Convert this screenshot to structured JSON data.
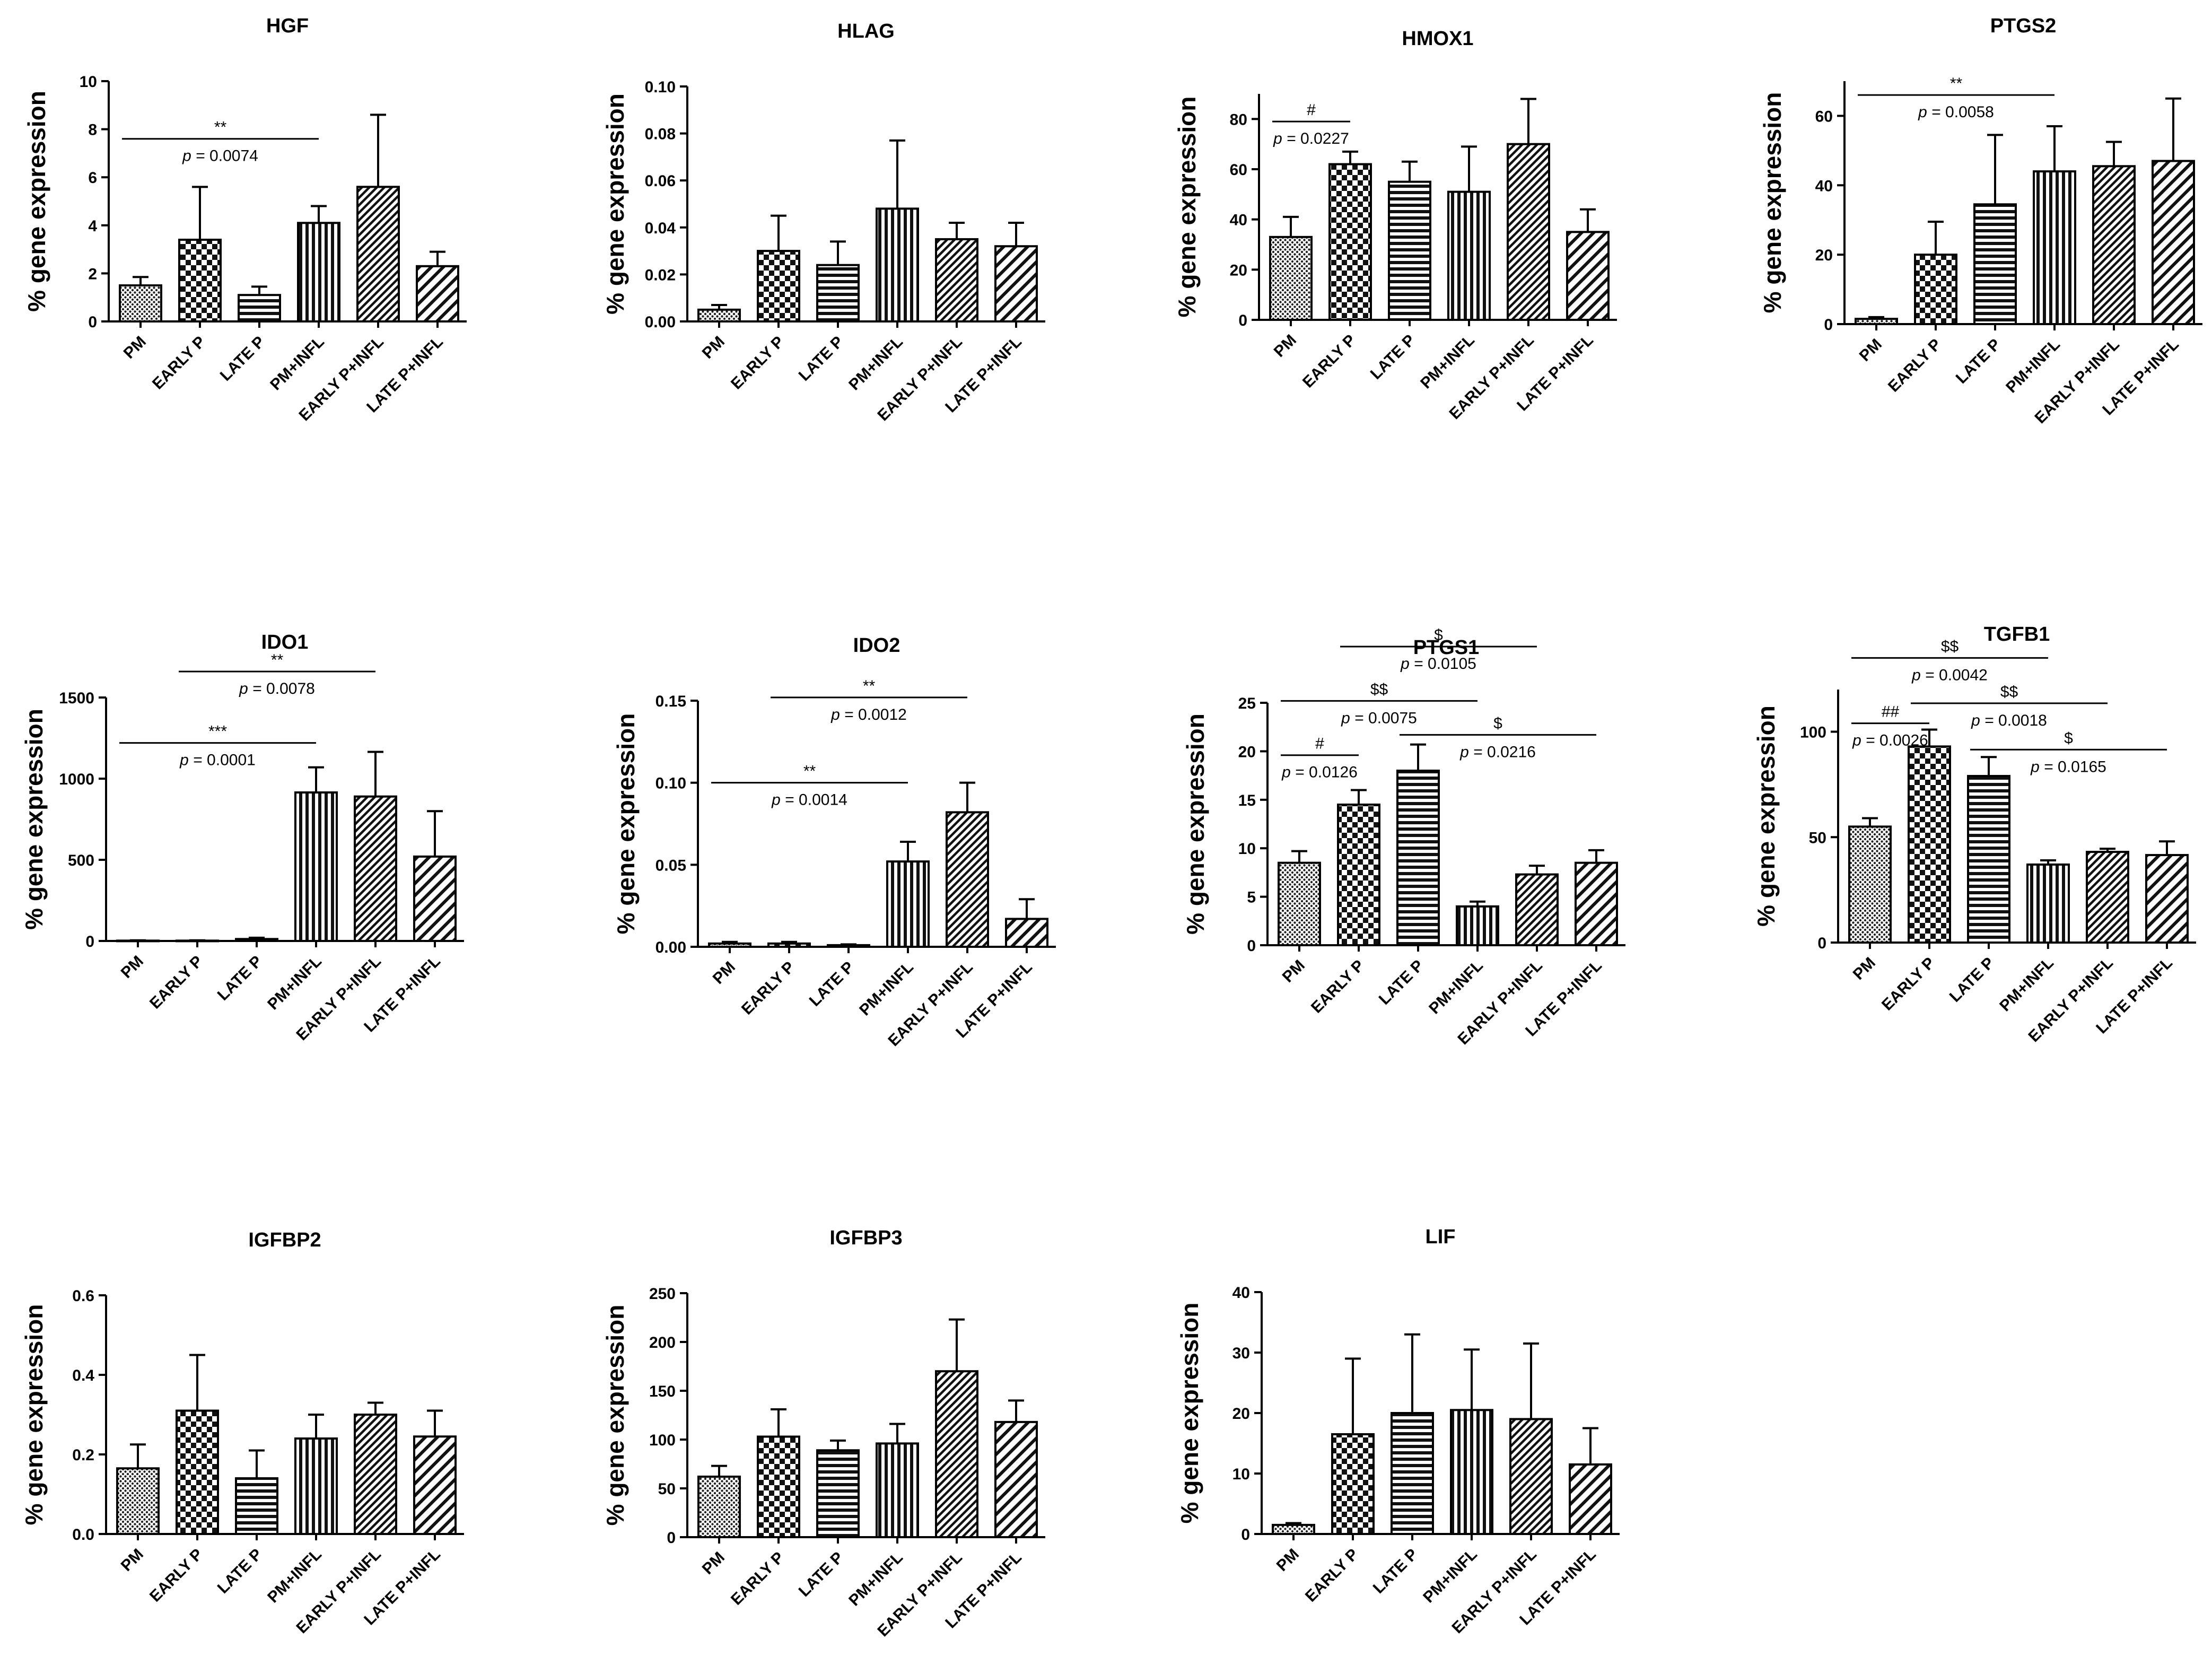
{
  "figure": {
    "title": ""
  },
  "patterns": {
    "PM": "dots",
    "EARLY P": "checker",
    "LATE P": "hlines",
    "PM+INFL": "vlines",
    "EARLY P+INFL": "diag-fine",
    "LATE P+INFL": "diag-wide"
  },
  "chart_data": [
    {
      "type": "bar",
      "title": "HGF",
      "ylabel": "% gene expression",
      "categories": [
        "PM",
        "EARLY P",
        "LATE P",
        "PM+INFL",
        "EARLY P+INFL",
        "LATE P+INFL"
      ],
      "values": [
        1.5,
        3.4,
        1.1,
        4.1,
        5.6,
        2.3
      ],
      "errors": [
        0.35,
        2.2,
        0.35,
        0.7,
        3.0,
        0.6
      ],
      "ylim": [
        0,
        10
      ],
      "yticks": [
        "0",
        "2",
        "4",
        "6",
        "8",
        "10"
      ],
      "annotations": [
        {
          "from": 0,
          "to": 3,
          "symbol": "**",
          "p": "= 0.0074",
          "y": 7.6
        }
      ]
    },
    {
      "type": "bar",
      "title": "HLAG",
      "ylabel": "% gene expression",
      "categories": [
        "PM",
        "EARLY P",
        "LATE P",
        "PM+INFL",
        "EARLY P+INFL",
        "LATE P+INFL"
      ],
      "values": [
        0.005,
        0.03,
        0.024,
        0.048,
        0.035,
        0.032
      ],
      "errors": [
        0.002,
        0.015,
        0.01,
        0.029,
        0.007,
        0.01
      ],
      "ylim": [
        0,
        0.1
      ],
      "yticks": [
        "0.00",
        "0.02",
        "0.04",
        "0.06",
        "0.08",
        "0.10"
      ],
      "annotations": []
    },
    {
      "type": "bar",
      "title": "HMOX1",
      "ylabel": "% gene expression",
      "categories": [
        "PM",
        "EARLY P",
        "LATE P",
        "PM+INFL",
        "EARLY P+INFL",
        "LATE P+INFL"
      ],
      "values": [
        33,
        62,
        55,
        51,
        70,
        35
      ],
      "errors": [
        8,
        5,
        8,
        18,
        18,
        9
      ],
      "ylim": [
        0,
        90
      ],
      "yticks": [
        "0",
        "20",
        "40",
        "60",
        "80"
      ],
      "annotations": [
        {
          "from": 0,
          "to": 1,
          "symbol": "#",
          "p": "= 0.0227",
          "y": 79
        }
      ]
    },
    {
      "type": "bar",
      "title": "PTGS2",
      "ylabel": "% gene expression",
      "categories": [
        "PM",
        "EARLY P",
        "LATE P",
        "PM+INFL",
        "EARLY P+INFL",
        "LATE P+INFL"
      ],
      "values": [
        1.5,
        20,
        34.5,
        44,
        45.5,
        47
      ],
      "errors": [
        0.5,
        9.5,
        20,
        13,
        7,
        18
      ],
      "ylim": [
        0,
        70
      ],
      "yticks": [
        "0",
        "20",
        "40",
        "60"
      ],
      "annotations": [
        {
          "from": 0,
          "to": 3,
          "symbol": "**",
          "p": "= 0.0058",
          "y": 66
        }
      ]
    },
    {
      "type": "bar",
      "title": "IDO1",
      "ylabel": "% gene expression",
      "categories": [
        "PM",
        "EARLY P",
        "LATE P",
        "PM+INFL",
        "EARLY P+INFL",
        "LATE P+INFL"
      ],
      "values": [
        2,
        2,
        12,
        915,
        890,
        520
      ],
      "errors": [
        2,
        2,
        8,
        155,
        275,
        280
      ],
      "ylim": [
        0,
        1500
      ],
      "yticks": [
        "0",
        "500",
        "1000",
        "1500"
      ],
      "annotations": [
        {
          "from": 0,
          "to": 3,
          "symbol": "***",
          "p": "= 0.0001",
          "y": 1220
        },
        {
          "from": 1,
          "to": 4,
          "symbol": "**",
          "p": "= 0.0078",
          "y": 1660
        }
      ]
    },
    {
      "type": "bar",
      "title": "IDO2",
      "ylabel": "% gene expression",
      "categories": [
        "PM",
        "EARLY P",
        "LATE P",
        "PM+INFL",
        "EARLY P+INFL",
        "LATE P+INFL"
      ],
      "values": [
        0.002,
        0.002,
        0.001,
        0.052,
        0.082,
        0.017
      ],
      "errors": [
        0.001,
        0.001,
        0.0005,
        0.012,
        0.018,
        0.012
      ],
      "ylim": [
        0,
        0.15
      ],
      "yticks": [
        "0.00",
        "0.05",
        "0.10",
        "0.15"
      ],
      "annotations": [
        {
          "from": 0,
          "to": 3,
          "symbol": "**",
          "p": "= 0.0014",
          "y": 0.1
        },
        {
          "from": 1,
          "to": 4,
          "symbol": "**",
          "p": "= 0.0012",
          "y": 0.152
        }
      ]
    },
    {
      "type": "bar",
      "title": "PTGS1",
      "ylabel": "% gene expression",
      "categories": [
        "PM",
        "EARLY P",
        "LATE P",
        "PM+INFL",
        "EARLY P+INFL",
        "LATE P+INFL"
      ],
      "values": [
        8.5,
        14.5,
        18,
        4,
        7.3,
        8.5
      ],
      "errors": [
        1.2,
        1.5,
        2.7,
        0.5,
        0.9,
        1.3
      ],
      "ylim": [
        0,
        25
      ],
      "yticks": [
        "0",
        "5",
        "10",
        "15",
        "20",
        "25"
      ],
      "annotations": [
        {
          "from": 0,
          "to": 1,
          "symbol": "#",
          "p": "= 0.0126",
          "y": 19.6
        },
        {
          "from": 0,
          "to": 3,
          "symbol": "$$",
          "p": "= 0.0075",
          "y": 25.2
        },
        {
          "from": 2,
          "to": 5,
          "symbol": "$",
          "p": "= 0.0216",
          "y": 21.7
        },
        {
          "from": 1,
          "to": 4,
          "symbol": "$",
          "p": "= 0.0105",
          "y": 30.8
        }
      ]
    },
    {
      "type": "bar",
      "title": "TGFB1",
      "ylabel": "% gene expression",
      "categories": [
        "PM",
        "EARLY P",
        "LATE P",
        "PM+INFL",
        "EARLY P+INFL",
        "LATE P+INFL"
      ],
      "values": [
        55,
        93,
        79,
        37,
        43,
        41.5
      ],
      "errors": [
        4,
        8,
        9,
        2,
        1.5,
        6.5
      ],
      "ylim": [
        0,
        120
      ],
      "yticks": [
        "0",
        "50",
        "100"
      ],
      "annotations": [
        {
          "from": 0,
          "to": 1,
          "symbol": "##",
          "p": "= 0.0026",
          "y": 104
        },
        {
          "from": 0,
          "to": 3,
          "symbol": "$$",
          "p": "= 0.0042",
          "y": 135
        },
        {
          "from": 1,
          "to": 4,
          "symbol": "$$",
          "p": "= 0.0018",
          "y": 113.5
        },
        {
          "from": 2,
          "to": 5,
          "symbol": "$",
          "p": "= 0.0165",
          "y": 91.5
        }
      ]
    },
    {
      "type": "bar",
      "title": "IGFBP2",
      "ylabel": "% gene expression",
      "categories": [
        "PM",
        "EARLY P",
        "LATE P",
        "PM+INFL",
        "EARLY P+INFL",
        "LATE P+INFL"
      ],
      "values": [
        0.165,
        0.31,
        0.14,
        0.24,
        0.3,
        0.245
      ],
      "errors": [
        0.06,
        0.14,
        0.07,
        0.06,
        0.03,
        0.065
      ],
      "ylim": [
        0,
        0.6
      ],
      "yticks": [
        "0.0",
        "0.2",
        "0.4",
        "0.6"
      ],
      "annotations": []
    },
    {
      "type": "bar",
      "title": "IGFBP3",
      "ylabel": "% gene expression",
      "categories": [
        "PM",
        "EARLY P",
        "LATE P",
        "PM+INFL",
        "EARLY P+INFL",
        "LATE P+INFL"
      ],
      "values": [
        62,
        103,
        89,
        96,
        170,
        118
      ],
      "errors": [
        11,
        28,
        10,
        20,
        53,
        22
      ],
      "ylim": [
        0,
        250
      ],
      "yticks": [
        "0",
        "50",
        "100",
        "150",
        "200",
        "250"
      ],
      "annotations": []
    },
    {
      "type": "bar",
      "title": "LIF",
      "ylabel": "% gene expression",
      "categories": [
        "PM",
        "EARLY P",
        "LATE P",
        "PM+INFL",
        "EARLY P+INFL",
        "LATE P+INFL"
      ],
      "values": [
        1.5,
        16.5,
        20,
        20.5,
        19,
        11.5
      ],
      "errors": [
        0.3,
        12.5,
        13,
        10,
        12.5,
        6
      ],
      "ylim": [
        0,
        40
      ],
      "yticks": [
        "0",
        "10",
        "20",
        "30",
        "40"
      ],
      "annotations": []
    }
  ]
}
